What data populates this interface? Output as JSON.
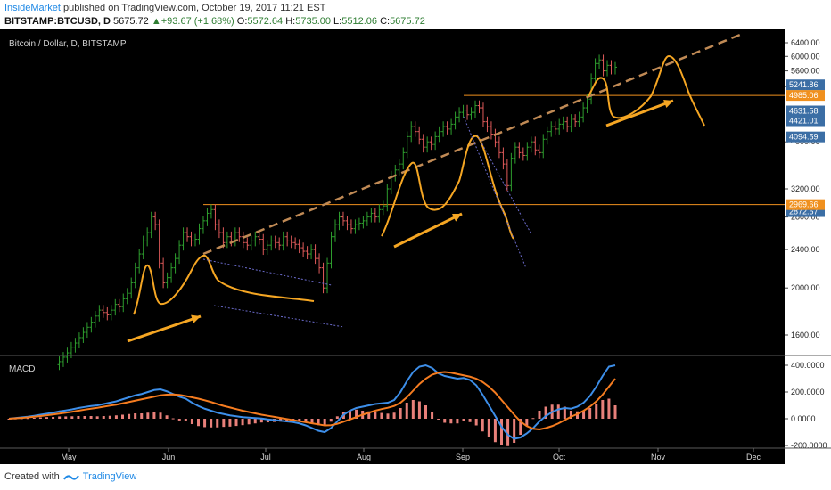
{
  "header": {
    "author": "InsideMarket",
    "published_text": "published on TradingView.com, October 19, 2017 11:21 EST",
    "symbol": "BITSTAMP:BTCUSD, D",
    "last": "5675.72",
    "change_arrow": "▲",
    "change": "+93.67 (+1.68%)",
    "o_label": "O:",
    "o_value": "5572.64",
    "h_label": "H:",
    "h_value": "5735.00",
    "l_label": "L:",
    "l_value": "5512.06",
    "c_label": "C:",
    "c_value": "5675.72"
  },
  "chart_data": {
    "type": "candlestick",
    "title": "Bitcoin / Dollar, D, BITSTAMP",
    "x_labels": [
      "May",
      "Jun",
      "Jul",
      "Aug",
      "Sep",
      "Oct",
      "Nov",
      "Dec"
    ],
    "price_ticks": [
      "6400.00",
      "6000.00",
      "5600.00",
      "5200.00",
      "4000.00",
      "3200.00",
      "2800.00",
      "2400.00",
      "2000.00",
      "1600.00"
    ],
    "price_badges": [
      {
        "text": "5241.86",
        "color": "#3b6ea5"
      },
      {
        "text": "4985.06",
        "color": "#f0901e"
      },
      {
        "text": "4631.58",
        "color": "#3b6ea5"
      },
      {
        "text": "4421.01",
        "color": "#3b6ea5"
      },
      {
        "text": "4094.59",
        "color": "#3b6ea5"
      },
      {
        "text": "2872.57",
        "color": "#3b6ea5"
      },
      {
        "text": "2969.66",
        "color": "#f0901e"
      }
    ],
    "series_close": [
      1390,
      1410,
      1440,
      1470,
      1510,
      1540,
      1580,
      1620,
      1660,
      1700,
      1750,
      1800,
      1780,
      1760,
      1800,
      1850,
      1830,
      1900,
      1950,
      2050,
      2200,
      2350,
      2500,
      2600,
      2800,
      2700,
      2250,
      2050,
      2100,
      2200,
      2300,
      2450,
      2600,
      2550,
      2500,
      2520,
      2650,
      2750,
      2850,
      2900,
      2700,
      2600,
      2480,
      2550,
      2500,
      2600,
      2550,
      2480,
      2450,
      2500,
      2550,
      2520,
      2400,
      2450,
      2500,
      2480,
      2450,
      2550,
      2500,
      2480,
      2460,
      2420,
      2380,
      2350,
      2400,
      2300,
      2200,
      2000,
      2250,
      2550,
      2700,
      2800,
      2750,
      2700,
      2650,
      2700,
      2720,
      2750,
      2800,
      2850,
      2800,
      2900,
      2950,
      3200,
      3400,
      3500,
      3600,
      3800,
      4100,
      4300,
      4200,
      4050,
      3900,
      4000,
      3950,
      4100,
      4200,
      4300,
      4250,
      4350,
      4500,
      4600,
      4650,
      4550,
      4600,
      4750,
      4700,
      4400,
      4300,
      4150,
      4000,
      3800,
      3600,
      3250,
      3700,
      3900,
      3800,
      3750,
      3900,
      4000,
      3850,
      3800,
      4050,
      4200,
      4300,
      4250,
      4350,
      4400,
      4300,
      4450,
      4400,
      4500,
      4700,
      4900,
      5400,
      5800,
      5900,
      5600,
      5750,
      5650,
      5700
    ],
    "macd_ticks": [
      "400.0000",
      "200.0000",
      "0.0000",
      "-200.0000"
    ],
    "macd_title": "MACD",
    "macd_line": [
      0,
      5,
      10,
      15,
      22,
      30,
      38,
      45,
      55,
      62,
      70,
      80,
      88,
      95,
      100,
      110,
      120,
      130,
      145,
      160,
      175,
      185,
      200,
      215,
      220,
      205,
      185,
      165,
      150,
      120,
      95,
      75,
      60,
      45,
      35,
      25,
      18,
      12,
      8,
      5,
      2,
      -5,
      -10,
      -15,
      -20,
      -25,
      -35,
      -50,
      -70,
      -90,
      -100,
      -70,
      -20,
      30,
      60,
      80,
      90,
      100,
      110,
      115,
      120,
      140,
      200,
      280,
      350,
      390,
      400,
      380,
      340,
      320,
      310,
      300,
      305,
      290,
      250,
      180,
      100,
      20,
      -60,
      -120,
      -150,
      -140,
      -110,
      -70,
      -20,
      20,
      50,
      70,
      80,
      75,
      90,
      120,
      170,
      240,
      320,
      390,
      400
    ],
    "signal_line": [
      0,
      3,
      6,
      10,
      15,
      20,
      26,
      32,
      38,
      45,
      52,
      60,
      68,
      75,
      82,
      90,
      98,
      105,
      115,
      125,
      135,
      145,
      155,
      165,
      175,
      180,
      182,
      178,
      170,
      160,
      150,
      138,
      125,
      110,
      96,
      84,
      72,
      60,
      50,
      40,
      30,
      22,
      14,
      6,
      -2,
      -10,
      -18,
      -26,
      -34,
      -42,
      -50,
      -48,
      -38,
      -22,
      -5,
      12,
      30,
      45,
      60,
      72,
      82,
      95,
      120,
      160,
      210,
      260,
      300,
      330,
      345,
      350,
      345,
      335,
      325,
      315,
      300,
      275,
      240,
      195,
      140,
      85,
      30,
      -20,
      -55,
      -75,
      -80,
      -70,
      -55,
      -35,
      -10,
      15,
      35,
      60,
      90,
      130,
      180,
      240,
      300
    ],
    "macd_hist": [
      0,
      2,
      4,
      5,
      7,
      10,
      12,
      13,
      17,
      17,
      18,
      20,
      20,
      20,
      18,
      20,
      22,
      25,
      30,
      35,
      40,
      40,
      45,
      50,
      45,
      25,
      3,
      -13,
      -20,
      -40,
      -55,
      -63,
      -65,
      -65,
      -61,
      -59,
      -54,
      -48,
      -42,
      -35,
      -28,
      -27,
      -24,
      -21,
      -18,
      -15,
      -17,
      -24,
      -36,
      -48,
      -50,
      -22,
      18,
      52,
      65,
      68,
      60,
      55,
      50,
      43,
      38,
      45,
      80,
      120,
      140,
      130,
      100,
      50,
      -5,
      -30,
      -35,
      -35,
      -20,
      -25,
      -50,
      -95,
      -140,
      -175,
      -200,
      -205,
      -180,
      -120,
      -55,
      5,
      60,
      90,
      105,
      105,
      90,
      60,
      55,
      60,
      80,
      110,
      140,
      150,
      100
    ]
  },
  "footer": {
    "created_with": "Created with",
    "brand": "TradingView"
  }
}
